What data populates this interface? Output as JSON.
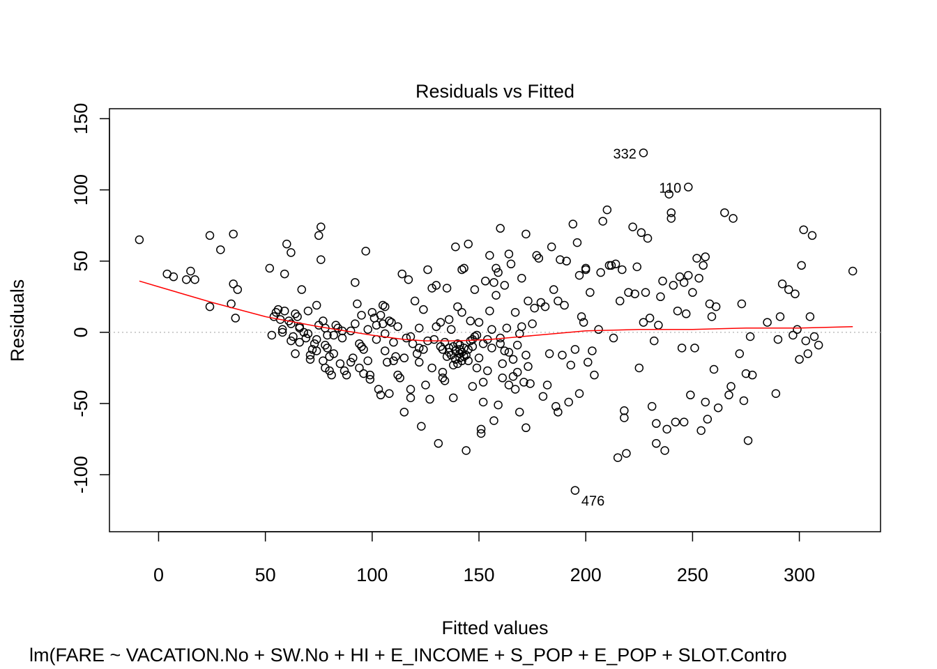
{
  "chart_data": {
    "type": "scatter",
    "title": "Residuals vs Fitted",
    "xlabel": "Fitted values",
    "ylabel": "Residuals",
    "subtitle": "lm(FARE ~ VACATION.No + SW.No + HI + E_INCOME + S_POP + E_POP + SLOT.Contro",
    "xlim": [
      -23,
      338
    ],
    "ylim": [
      -140,
      157
    ],
    "x_ticks": [
      0,
      50,
      100,
      150,
      200,
      250,
      300
    ],
    "y_ticks": [
      -100,
      -50,
      0,
      50,
      100,
      150
    ],
    "x_tick_labels": [
      "0",
      "50",
      "100",
      "150",
      "200",
      "250",
      "300"
    ],
    "y_tick_labels": [
      "-100",
      "-50",
      "0",
      "50",
      "100",
      "150"
    ],
    "grid": false,
    "reference_line": {
      "y": 0,
      "color": "#bebebe",
      "style": "dotted"
    },
    "point_color": "#000000",
    "smooth_color": "#ff0000",
    "labeled_points": [
      {
        "label": "332",
        "x": 227,
        "y": 126
      },
      {
        "label": "110",
        "x": 248,
        "y": 102
      },
      {
        "label": "476",
        "x": 195,
        "y": -111
      }
    ],
    "smooth_line": {
      "x": [
        -9,
        0,
        25,
        50,
        75,
        100,
        115,
        125,
        140,
        155,
        170,
        185,
        200,
        225,
        250,
        275,
        300,
        325
      ],
      "y": [
        36,
        32,
        21,
        11,
        4,
        -2,
        -5,
        -6,
        -6,
        -5,
        -3,
        -1,
        1,
        2,
        2,
        3,
        3,
        4
      ]
    },
    "points": [
      [
        -9,
        65
      ],
      [
        4,
        41
      ],
      [
        7,
        39
      ],
      [
        15,
        43
      ],
      [
        13,
        37
      ],
      [
        17,
        37
      ],
      [
        24,
        68
      ],
      [
        24,
        18
      ],
      [
        29,
        58
      ],
      [
        34,
        20
      ],
      [
        35,
        69
      ],
      [
        35,
        34
      ],
      [
        36,
        10
      ],
      [
        37,
        30
      ],
      [
        52,
        45
      ],
      [
        53,
        -2
      ],
      [
        54,
        11
      ],
      [
        55,
        14
      ],
      [
        56,
        16
      ],
      [
        57,
        9
      ],
      [
        58,
        0
      ],
      [
        59,
        15
      ],
      [
        59,
        41
      ],
      [
        60,
        62
      ],
      [
        61,
        8
      ],
      [
        62,
        6
      ],
      [
        62,
        56
      ],
      [
        63,
        -3
      ],
      [
        64,
        -15
      ],
      [
        64,
        13
      ],
      [
        65,
        11
      ],
      [
        66,
        -7
      ],
      [
        66,
        3
      ],
      [
        67,
        30
      ],
      [
        68,
        0
      ],
      [
        69,
        -4
      ],
      [
        70,
        15
      ],
      [
        71,
        -16
      ],
      [
        71,
        -19
      ],
      [
        72,
        -12
      ],
      [
        73,
        -8
      ],
      [
        74,
        19
      ],
      [
        74,
        -13
      ],
      [
        75,
        5
      ],
      [
        75,
        68
      ],
      [
        76,
        74
      ],
      [
        76,
        51
      ],
      [
        77,
        8
      ],
      [
        77,
        -20
      ],
      [
        78,
        -25
      ],
      [
        78,
        3
      ],
      [
        79,
        -2
      ],
      [
        79,
        -11
      ],
      [
        80,
        -17
      ],
      [
        80,
        -27
      ],
      [
        81,
        -30
      ],
      [
        82,
        -15
      ],
      [
        83,
        5
      ],
      [
        84,
        3
      ],
      [
        85,
        -22
      ],
      [
        86,
        1
      ],
      [
        87,
        -27
      ],
      [
        88,
        -30
      ],
      [
        90,
        -21
      ],
      [
        91,
        -18
      ],
      [
        92,
        6
      ],
      [
        92,
        35
      ],
      [
        93,
        20
      ],
      [
        94,
        -25
      ],
      [
        95,
        -10
      ],
      [
        95,
        12
      ],
      [
        96,
        -12
      ],
      [
        96,
        -29
      ],
      [
        97,
        57
      ],
      [
        98,
        -20
      ],
      [
        99,
        -33
      ],
      [
        99,
        -30
      ],
      [
        100,
        14
      ],
      [
        101,
        10
      ],
      [
        102,
        5
      ],
      [
        103,
        -40
      ],
      [
        104,
        -44
      ],
      [
        104,
        12
      ],
      [
        105,
        19
      ],
      [
        105,
        6
      ],
      [
        106,
        -13
      ],
      [
        106,
        18
      ],
      [
        107,
        -21
      ],
      [
        108,
        8
      ],
      [
        108,
        -43
      ],
      [
        109,
        7
      ],
      [
        110,
        -20
      ],
      [
        111,
        -17
      ],
      [
        112,
        -30
      ],
      [
        112,
        4
      ],
      [
        113,
        -32
      ],
      [
        114,
        41
      ],
      [
        115,
        -56
      ],
      [
        116,
        -4
      ],
      [
        117,
        37
      ],
      [
        118,
        -40
      ],
      [
        118,
        -46
      ],
      [
        119,
        -8
      ],
      [
        120,
        22
      ],
      [
        121,
        -15
      ],
      [
        122,
        3
      ],
      [
        122,
        -21
      ],
      [
        123,
        -66
      ],
      [
        124,
        -12
      ],
      [
        124,
        16
      ],
      [
        125,
        -37
      ],
      [
        126,
        44
      ],
      [
        127,
        -47
      ],
      [
        128,
        -25
      ],
      [
        128,
        31
      ],
      [
        129,
        -5
      ],
      [
        130,
        4
      ],
      [
        130,
        33
      ],
      [
        131,
        -78
      ],
      [
        132,
        -10
      ],
      [
        132,
        7
      ],
      [
        133,
        -32
      ],
      [
        133,
        -28
      ],
      [
        134,
        -34
      ],
      [
        135,
        31
      ],
      [
        136,
        -11
      ],
      [
        136,
        9
      ],
      [
        137,
        2
      ],
      [
        138,
        -46
      ],
      [
        138,
        -23
      ],
      [
        139,
        60
      ],
      [
        140,
        18
      ],
      [
        141,
        -15
      ],
      [
        141,
        -12
      ],
      [
        142,
        44
      ],
      [
        142,
        14
      ],
      [
        143,
        45
      ],
      [
        143,
        -17
      ],
      [
        144,
        -83
      ],
      [
        145,
        62
      ],
      [
        145,
        -20
      ],
      [
        146,
        8
      ],
      [
        147,
        -38
      ],
      [
        147,
        -5
      ],
      [
        148,
        30
      ],
      [
        149,
        -25
      ],
      [
        150,
        7
      ],
      [
        150,
        -18
      ],
      [
        151,
        -71
      ],
      [
        151,
        -68
      ],
      [
        152,
        -35
      ],
      [
        152,
        -49
      ],
      [
        153,
        36
      ],
      [
        154,
        -27
      ],
      [
        154,
        -5
      ],
      [
        155,
        54
      ],
      [
        155,
        15
      ],
      [
        156,
        2
      ],
      [
        157,
        -62
      ],
      [
        157,
        35
      ],
      [
        158,
        26
      ],
      [
        158,
        45
      ],
      [
        159,
        42
      ],
      [
        159,
        -51
      ],
      [
        160,
        73
      ],
      [
        160,
        -8
      ],
      [
        161,
        -22
      ],
      [
        161,
        -32
      ],
      [
        162,
        -13
      ],
      [
        162,
        33
      ],
      [
        163,
        3
      ],
      [
        164,
        55
      ],
      [
        164,
        -37
      ],
      [
        165,
        48
      ],
      [
        166,
        -31
      ],
      [
        166,
        -19
      ],
      [
        167,
        -40
      ],
      [
        167,
        14
      ],
      [
        168,
        -28
      ],
      [
        169,
        -56
      ],
      [
        169,
        -1
      ],
      [
        170,
        4
      ],
      [
        170,
        38
      ],
      [
        171,
        -35
      ],
      [
        172,
        69
      ],
      [
        172,
        -67
      ],
      [
        173,
        -24
      ],
      [
        173,
        22
      ],
      [
        174,
        -36
      ],
      [
        175,
        6
      ],
      [
        176,
        17
      ],
      [
        177,
        54
      ],
      [
        178,
        52
      ],
      [
        179,
        21
      ],
      [
        180,
        -45
      ],
      [
        181,
        18
      ],
      [
        182,
        -37
      ],
      [
        183,
        -15
      ],
      [
        184,
        60
      ],
      [
        185,
        30
      ],
      [
        186,
        -52
      ],
      [
        187,
        -56
      ],
      [
        187,
        22
      ],
      [
        188,
        51
      ],
      [
        189,
        -16
      ],
      [
        190,
        19
      ],
      [
        191,
        50
      ],
      [
        192,
        -49
      ],
      [
        193,
        -23
      ],
      [
        194,
        76
      ],
      [
        195,
        -12
      ],
      [
        196,
        63
      ],
      [
        197,
        40
      ],
      [
        197,
        -43
      ],
      [
        198,
        11
      ],
      [
        199,
        7
      ],
      [
        200,
        45
      ],
      [
        200,
        44
      ],
      [
        201,
        -21
      ],
      [
        202,
        28
      ],
      [
        203,
        -13
      ],
      [
        204,
        -30
      ],
      [
        206,
        2
      ],
      [
        207,
        42
      ],
      [
        208,
        78
      ],
      [
        210,
        86
      ],
      [
        211,
        47
      ],
      [
        212,
        47
      ],
      [
        213,
        -4
      ],
      [
        214,
        48
      ],
      [
        215,
        -88
      ],
      [
        216,
        22
      ],
      [
        217,
        44
      ],
      [
        218,
        -55
      ],
      [
        218,
        -60
      ],
      [
        219,
        -85
      ],
      [
        220,
        28
      ],
      [
        222,
        74
      ],
      [
        223,
        27
      ],
      [
        224,
        46
      ],
      [
        225,
        -25
      ],
      [
        226,
        70
      ],
      [
        227,
        7
      ],
      [
        228,
        28
      ],
      [
        229,
        66
      ],
      [
        230,
        10
      ],
      [
        231,
        -52
      ],
      [
        232,
        -6
      ],
      [
        233,
        -64
      ],
      [
        233,
        -78
      ],
      [
        234,
        5
      ],
      [
        235,
        25
      ],
      [
        236,
        36
      ],
      [
        237,
        -83
      ],
      [
        238,
        -68
      ],
      [
        239,
        97
      ],
      [
        240,
        80
      ],
      [
        240,
        84
      ],
      [
        241,
        33
      ],
      [
        242,
        -63
      ],
      [
        243,
        15
      ],
      [
        244,
        39
      ],
      [
        245,
        -11
      ],
      [
        246,
        -63
      ],
      [
        246,
        35
      ],
      [
        247,
        13
      ],
      [
        248,
        40
      ],
      [
        249,
        -44
      ],
      [
        250,
        28
      ],
      [
        251,
        -11
      ],
      [
        252,
        52
      ],
      [
        253,
        38
      ],
      [
        254,
        -69
      ],
      [
        255,
        47
      ],
      [
        256,
        53
      ],
      [
        256,
        -49
      ],
      [
        257,
        -61
      ],
      [
        258,
        20
      ],
      [
        259,
        11
      ],
      [
        260,
        -26
      ],
      [
        261,
        18
      ],
      [
        262,
        -53
      ],
      [
        265,
        84
      ],
      [
        267,
        -44
      ],
      [
        268,
        -38
      ],
      [
        269,
        80
      ],
      [
        272,
        -15
      ],
      [
        273,
        20
      ],
      [
        274,
        -48
      ],
      [
        275,
        -29
      ],
      [
        276,
        -76
      ],
      [
        277,
        -3
      ],
      [
        278,
        -30
      ],
      [
        285,
        7
      ],
      [
        289,
        -43
      ],
      [
        290,
        -5
      ],
      [
        291,
        11
      ],
      [
        292,
        34
      ],
      [
        295,
        30
      ],
      [
        297,
        -2
      ],
      [
        298,
        27
      ],
      [
        299,
        2
      ],
      [
        300,
        -19
      ],
      [
        301,
        47
      ],
      [
        302,
        72
      ],
      [
        303,
        -6
      ],
      [
        304,
        -15
      ],
      [
        305,
        11
      ],
      [
        306,
        68
      ],
      [
        307,
        -3
      ],
      [
        309,
        -9
      ],
      [
        325,
        43
      ],
      [
        137,
        -16
      ],
      [
        138,
        -10
      ],
      [
        139,
        -13
      ],
      [
        140,
        -8
      ],
      [
        141,
        -18
      ],
      [
        142,
        -14
      ],
      [
        143,
        -11
      ],
      [
        144,
        -16
      ],
      [
        139,
        -19
      ],
      [
        141,
        -9
      ],
      [
        145,
        -12
      ],
      [
        136,
        -14
      ],
      [
        142,
        -20
      ],
      [
        140,
        -22
      ],
      [
        146,
        -6
      ],
      [
        134,
        -7
      ],
      [
        147,
        -10
      ],
      [
        148,
        -3
      ],
      [
        133,
        -12
      ],
      [
        135,
        -17
      ],
      [
        149,
        -2
      ],
      [
        152,
        -8
      ],
      [
        156,
        -11
      ],
      [
        160,
        -4
      ],
      [
        164,
        -14
      ],
      [
        168,
        -9
      ],
      [
        172,
        -16
      ],
      [
        126,
        -6
      ],
      [
        122,
        -11
      ],
      [
        118,
        -3
      ],
      [
        115,
        -18
      ],
      [
        110,
        -7
      ],
      [
        106,
        -1
      ],
      [
        102,
        -5
      ],
      [
        98,
        2
      ],
      [
        94,
        -8
      ],
      [
        90,
        1
      ],
      [
        86,
        -4
      ],
      [
        82,
        -2
      ],
      [
        78,
        -9
      ],
      [
        74,
        -5
      ],
      [
        70,
        -1
      ],
      [
        66,
        4
      ],
      [
        62,
        -6
      ],
      [
        58,
        2
      ]
    ]
  }
}
